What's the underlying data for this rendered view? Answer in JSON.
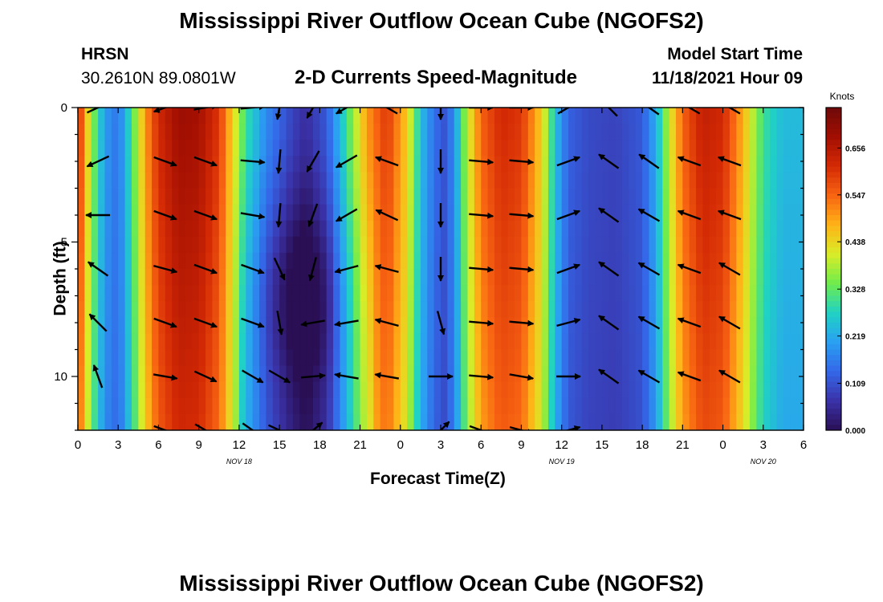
{
  "header": {
    "title": "Mississippi River Outflow Ocean Cube (NGOFS2)",
    "station_code": "HRSN",
    "station_coords": "30.2610N  89.0801W",
    "subtitle": "2-D Currents Speed-Magnitude",
    "model_start_label": "Model Start Time",
    "model_start_value": "11/18/2021 Hour 09"
  },
  "footer": {
    "title": "Mississippi River Outflow Ocean Cube (NGOFS2)"
  },
  "chart_data": {
    "type": "heatmap",
    "title": "2-D Currents Speed-Magnitude",
    "xlabel": "Forecast Time(Z)",
    "ylabel": "Depth (ft)",
    "x_ticks": [
      "0",
      "3",
      "6",
      "9",
      "12",
      "15",
      "18",
      "21",
      "0",
      "3",
      "6",
      "9",
      "12",
      "15",
      "18",
      "21",
      "0",
      "3",
      "6"
    ],
    "x_range_hours": [
      0,
      54
    ],
    "date_labels": [
      {
        "hour": 12,
        "text": "NOV 18"
      },
      {
        "hour": 36,
        "text": "NOV 19"
      },
      {
        "hour": 51,
        "text": "NOV 20"
      }
    ],
    "y_ticks": [
      "0",
      "5",
      "10"
    ],
    "y_range_ft": [
      0,
      12
    ],
    "y_inverted": true,
    "colorbar": {
      "label": "Knots",
      "ticks": [
        "0.656",
        "0.547",
        "0.438",
        "0.328",
        "0.219",
        "0.109",
        "0.000"
      ],
      "range": [
        0.0,
        0.75
      ],
      "colors": [
        "#2a0f55",
        "#3a32a8",
        "#3467e8",
        "#2aa0f2",
        "#20d2c4",
        "#6fec4c",
        "#d9ec28",
        "#ffb317",
        "#f86412",
        "#d42a05",
        "#a20f02",
        "#6e0a0a"
      ]
    },
    "speed_profile_by_hour": [
      {
        "hour": 0,
        "speed": 0.63
      },
      {
        "hour": 1,
        "speed": 0.38
      },
      {
        "hour": 2,
        "speed": 0.2
      },
      {
        "hour": 3,
        "speed": 0.15
      },
      {
        "hour": 4,
        "speed": 0.3
      },
      {
        "hour": 5,
        "speed": 0.5
      },
      {
        "hour": 6,
        "speed": 0.62
      },
      {
        "hour": 7.5,
        "speed": 0.69
      },
      {
        "hour": 9,
        "speed": 0.68
      },
      {
        "hour": 10.5,
        "speed": 0.6
      },
      {
        "hour": 11.5,
        "speed": 0.45
      },
      {
        "hour": 12.5,
        "speed": 0.3
      },
      {
        "hour": 14,
        "speed": 0.18
      },
      {
        "hour": 16,
        "speed": 0.09
      },
      {
        "hour": 17,
        "speed": 0.06
      },
      {
        "hour": 18.5,
        "speed": 0.12
      },
      {
        "hour": 20,
        "speed": 0.3
      },
      {
        "hour": 21.5,
        "speed": 0.5
      },
      {
        "hour": 23,
        "speed": 0.6
      },
      {
        "hour": 24.5,
        "speed": 0.45
      },
      {
        "hour": 25.5,
        "speed": 0.25
      },
      {
        "hour": 26.5,
        "speed": 0.15
      },
      {
        "hour": 27.2,
        "speed": 0.11
      },
      {
        "hour": 28,
        "speed": 0.18
      },
      {
        "hour": 29,
        "speed": 0.4
      },
      {
        "hour": 30,
        "speed": 0.55
      },
      {
        "hour": 31.5,
        "speed": 0.62
      },
      {
        "hour": 33,
        "speed": 0.6
      },
      {
        "hour": 34.5,
        "speed": 0.45
      },
      {
        "hour": 35.5,
        "speed": 0.25
      },
      {
        "hour": 36.5,
        "speed": 0.13
      },
      {
        "hour": 38,
        "speed": 0.1
      },
      {
        "hour": 40,
        "speed": 0.09
      },
      {
        "hour": 42,
        "speed": 0.12
      },
      {
        "hour": 43,
        "speed": 0.22
      },
      {
        "hour": 44,
        "speed": 0.4
      },
      {
        "hour": 45,
        "speed": 0.55
      },
      {
        "hour": 46.5,
        "speed": 0.64
      },
      {
        "hour": 48,
        "speed": 0.62
      },
      {
        "hour": 49.5,
        "speed": 0.48
      },
      {
        "hour": 51,
        "speed": 0.3
      },
      {
        "hour": 52.5,
        "speed": 0.24
      },
      {
        "hour": 54,
        "speed": 0.24
      }
    ],
    "deep_minimum": {
      "hour": 16.5,
      "depth": 7,
      "extra_depth_ft": 12,
      "drop": 0.045
    },
    "vector_hours": [
      1.5,
      6.5,
      9.5,
      13,
      15,
      17.5,
      20,
      23,
      27,
      30,
      33,
      36.5,
      39.5,
      42.5,
      45.5,
      48.5
    ],
    "vector_depths": [
      0,
      2,
      4,
      6,
      8,
      10,
      12
    ],
    "vector_angles_deg": [
      [
        25,
        200,
        10,
        5,
        -100,
        -120,
        210,
        150,
        -90,
        0,
        0,
        30,
        135,
        145,
        150,
        150
      ],
      [
        -155,
        -20,
        -20,
        -5,
        -95,
        -120,
        210,
        160,
        -90,
        -5,
        -5,
        20,
        145,
        145,
        160,
        160
      ],
      [
        -180,
        -20,
        -20,
        -10,
        -95,
        -110,
        210,
        155,
        -90,
        -5,
        -5,
        20,
        145,
        150,
        160,
        160
      ],
      [
        145,
        -15,
        -20,
        -20,
        -65,
        -105,
        195,
        165,
        -90,
        -5,
        -5,
        20,
        145,
        150,
        160,
        150
      ],
      [
        135,
        -20,
        -20,
        -20,
        -80,
        190,
        190,
        165,
        -75,
        -5,
        -5,
        15,
        145,
        150,
        160,
        150
      ],
      [
        110,
        -10,
        -25,
        -30,
        -30,
        5,
        170,
        170,
        0,
        -5,
        -10,
        0,
        145,
        150,
        160,
        150
      ],
      [
        null,
        -20,
        -30,
        -35,
        -25,
        40,
        null,
        null,
        45,
        -20,
        -15,
        15,
        null,
        null,
        null,
        null
      ]
    ]
  }
}
